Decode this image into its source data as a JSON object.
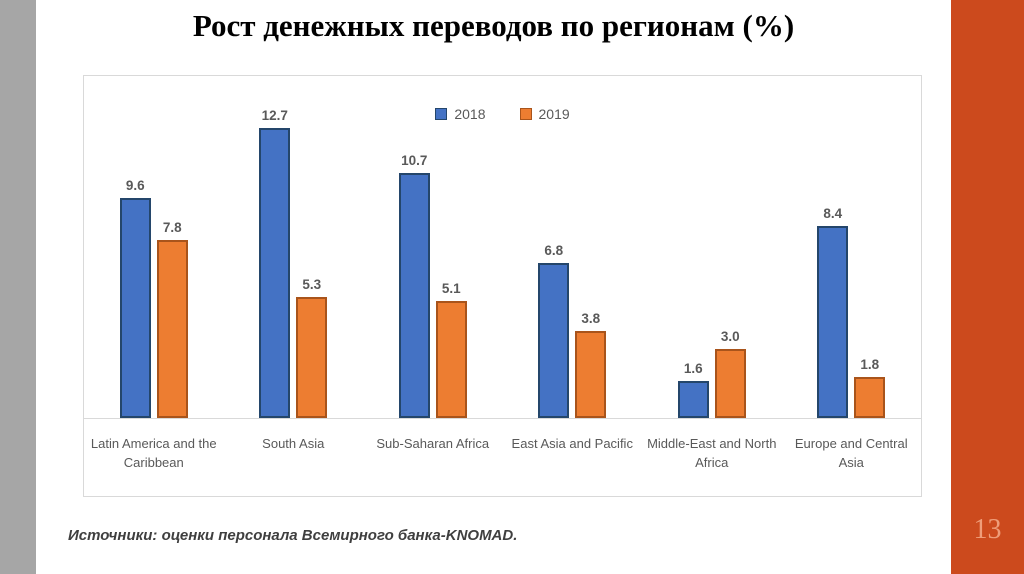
{
  "slide": {
    "title": "Рост денежных переводов по регионам (%)",
    "source_note": "Источники: оценки персонала Всемирного банка-KNOMAD.",
    "page_number": "13"
  },
  "colors": {
    "left_strip": "#a6a6a6",
    "right_strip": "#cc4a1d",
    "page_number_text": "#ef9d79",
    "series_2018_fill": "#4472c4",
    "series_2018_border": "#24466b",
    "series_2019_fill": "#ed7d31",
    "series_2019_border": "#a9541b",
    "axis_line": "#d9d9d9",
    "label_text": "#595959"
  },
  "chart_data": {
    "type": "bar",
    "title": "",
    "xlabel": "",
    "ylabel": "",
    "ylim": [
      0,
      15
    ],
    "grid": false,
    "legend_position": "top",
    "value_labels": true,
    "categories": [
      "Latin America and the Caribbean",
      "South Asia",
      "Sub-Saharan Africa",
      "East Asia and Pacific",
      "Middle-East and North Africa",
      "Europe and Central Asia"
    ],
    "series": [
      {
        "name": "2018",
        "color": "#4472c4",
        "border_color": "#24466b",
        "values": [
          9.6,
          12.7,
          10.7,
          6.8,
          1.6,
          8.4
        ]
      },
      {
        "name": "2019",
        "color": "#ed7d31",
        "border_color": "#a9541b",
        "values": [
          7.8,
          5.3,
          5.1,
          3.8,
          3.0,
          1.8
        ]
      }
    ]
  }
}
